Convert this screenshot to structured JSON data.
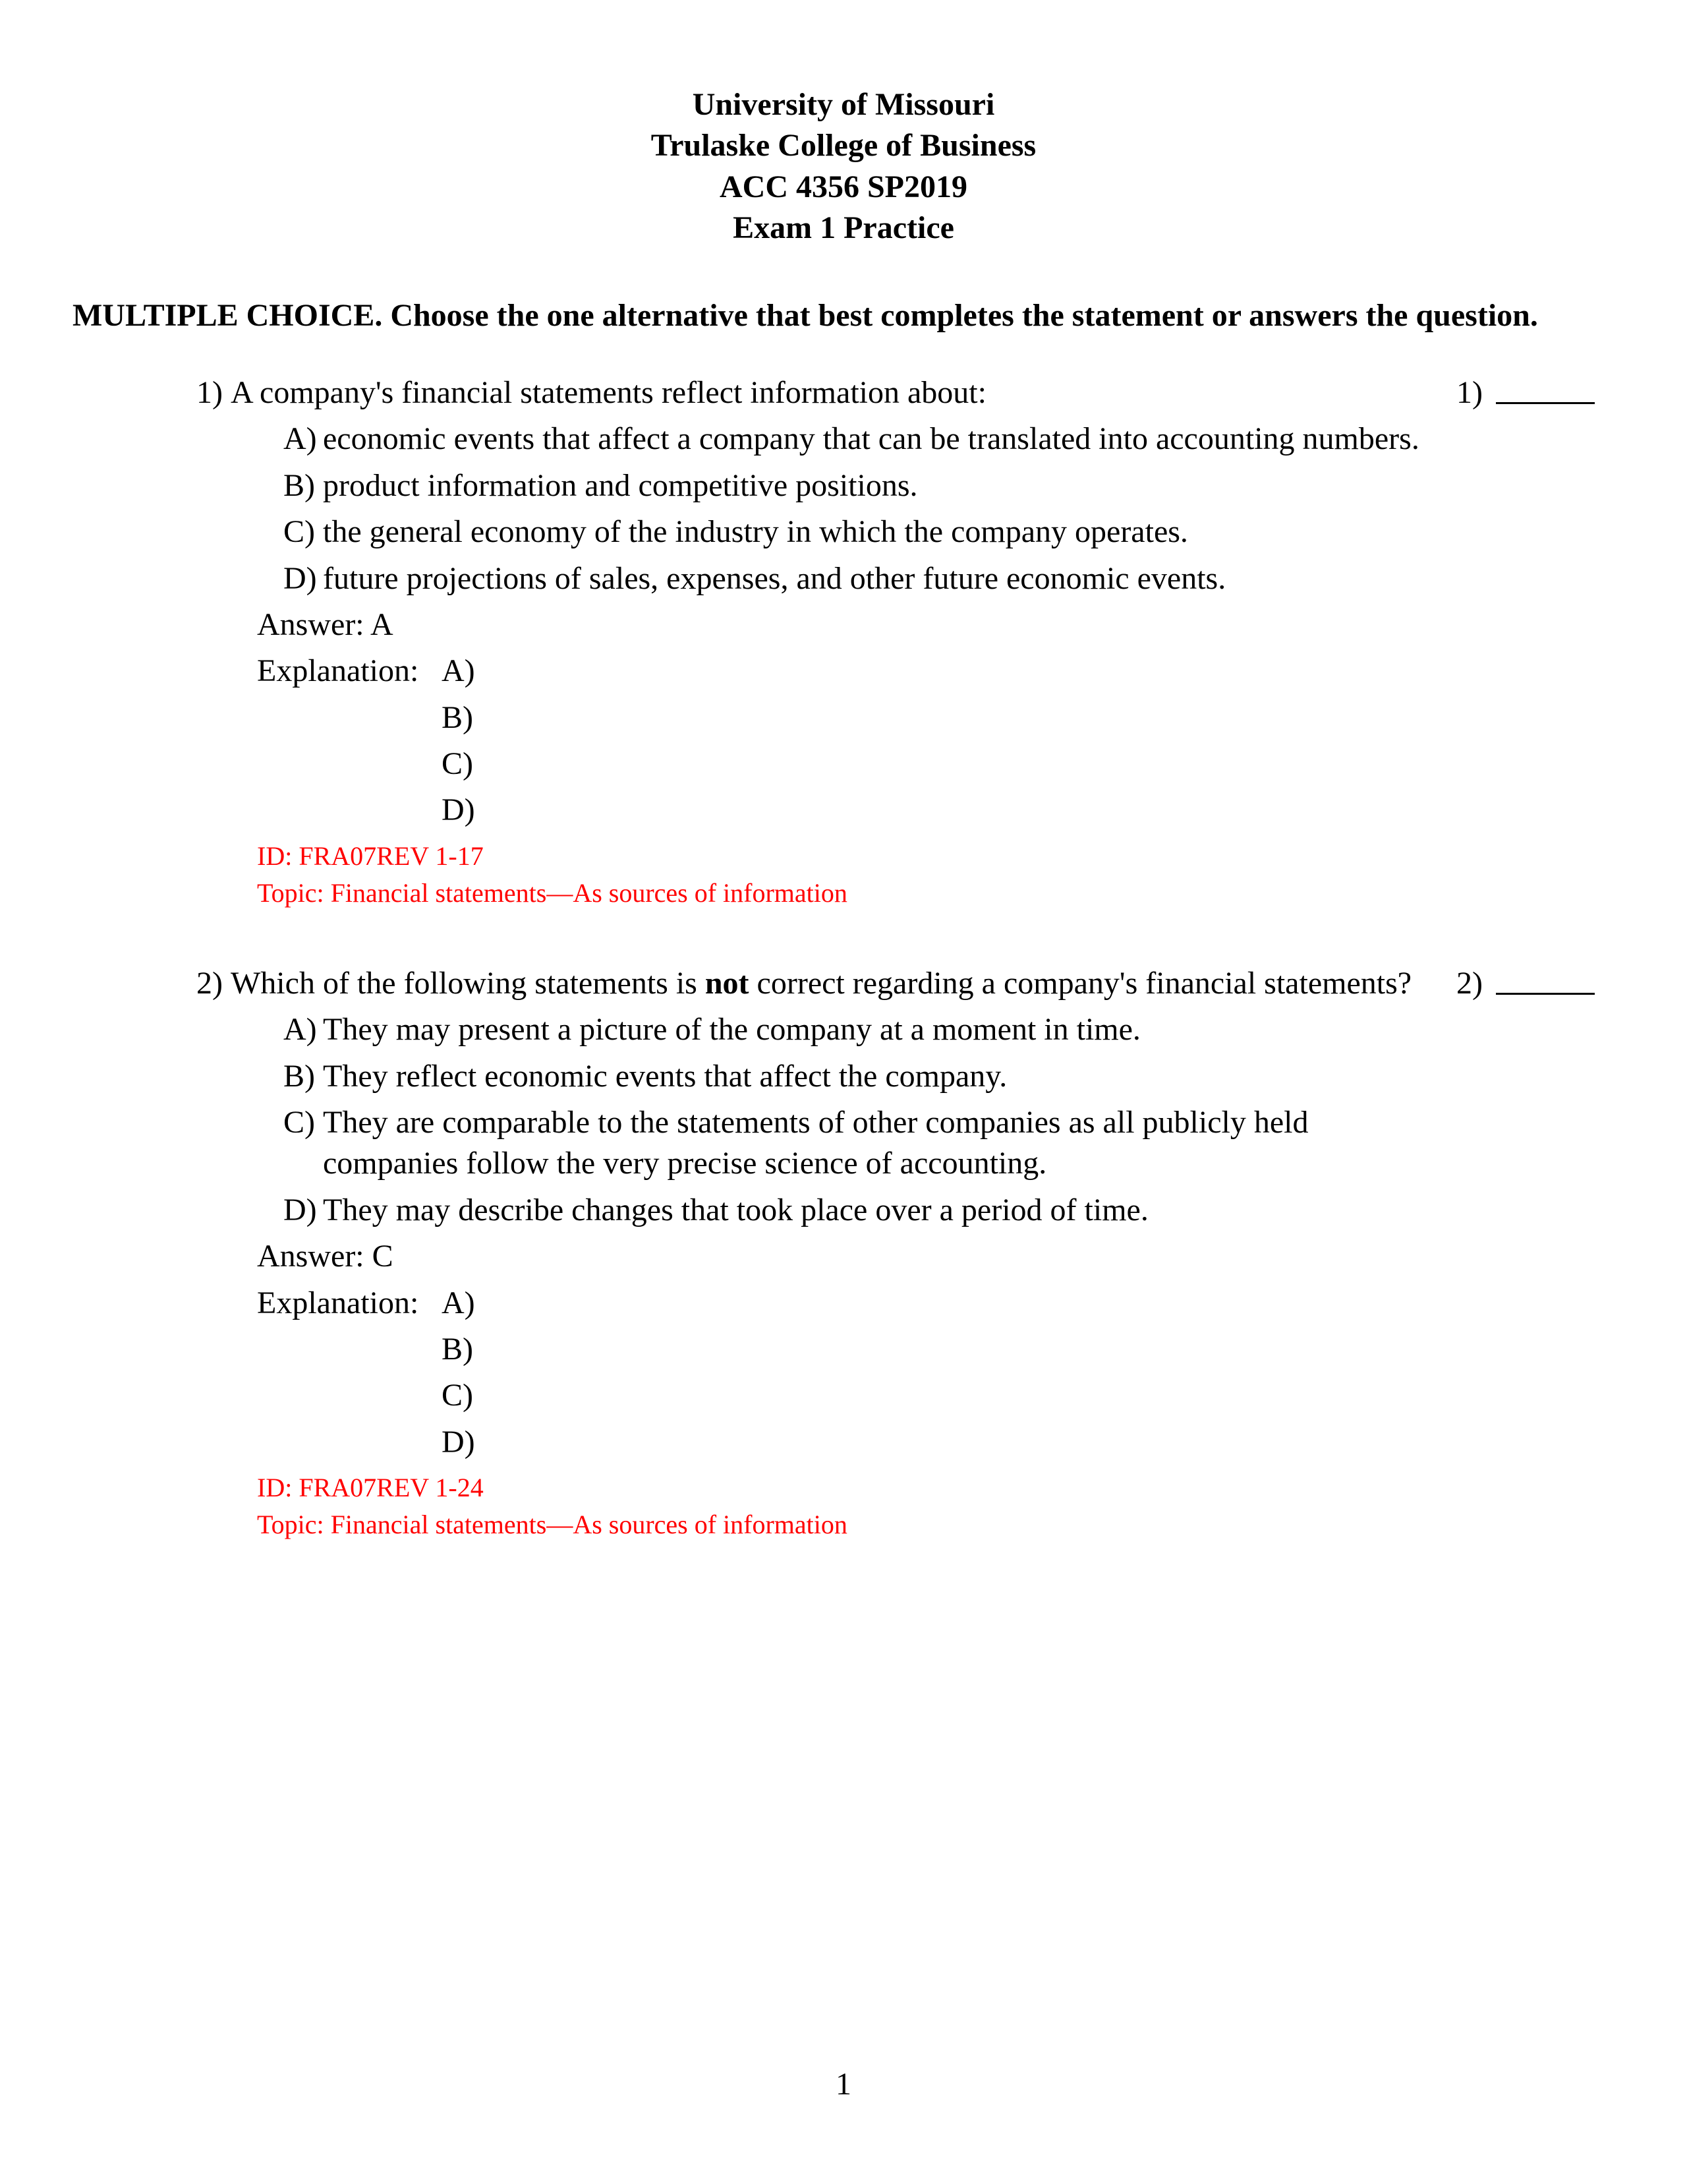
{
  "header": {
    "line1": "University of Missouri",
    "line2": "Trulaske College of Business",
    "line3": "ACC 4356  SP2019",
    "line4": "Exam 1 Practice"
  },
  "instructions": "MULTIPLE CHOICE.  Choose the one alternative that best completes the statement or answers the question.",
  "questions": [
    {
      "number": "1)",
      "text": "A company's financial statements reflect information about:",
      "answer_number": "1)",
      "options": [
        {
          "letter": "A)",
          "text": "economic events that affect a company that can be translated into accounting numbers."
        },
        {
          "letter": "B)",
          "text": "product information and competitive positions."
        },
        {
          "letter": "C)",
          "text": "the general economy of the industry in which the company operates."
        },
        {
          "letter": "D)",
          "text": "future projections of sales, expenses, and other future economic events."
        }
      ],
      "answer_label": "Answer:",
      "answer_value": "A",
      "explanation_label": "Explanation:",
      "explanation_options": [
        "A)",
        "B)",
        "C)",
        "D)"
      ],
      "id_label": "ID: FRA07REV 1-17",
      "topic_label": "Topic:  Financial statements—As sources of information"
    },
    {
      "number": "2)",
      "text_before_bold": "Which of the following statements is ",
      "text_bold": "not",
      "text_after_bold": " correct regarding a company's financial statements?",
      "answer_number": "2)",
      "options": [
        {
          "letter": "A)",
          "text": "They may present a picture of the company at a moment in time."
        },
        {
          "letter": "B)",
          "text": "They reflect economic events that affect the company."
        },
        {
          "letter": "C)",
          "text": "They are comparable to the statements of other companies as all publicly held companies follow the very precise science of accounting."
        },
        {
          "letter": "D)",
          "text": "They may describe changes that took place over a period of time."
        }
      ],
      "answer_label": "Answer:",
      "answer_value": "C",
      "explanation_label": "Explanation:",
      "explanation_options": [
        "A)",
        "B)",
        "C)",
        "D)"
      ],
      "id_label": "ID: FRA07REV 1-24",
      "topic_label": "Topic:  Financial statements—As sources of information"
    }
  ],
  "page_number": "1",
  "colors": {
    "text": "#000000",
    "meta": "#ff0000",
    "background": "#ffffff"
  },
  "fonts": {
    "body_size": 48,
    "meta_size": 40
  }
}
